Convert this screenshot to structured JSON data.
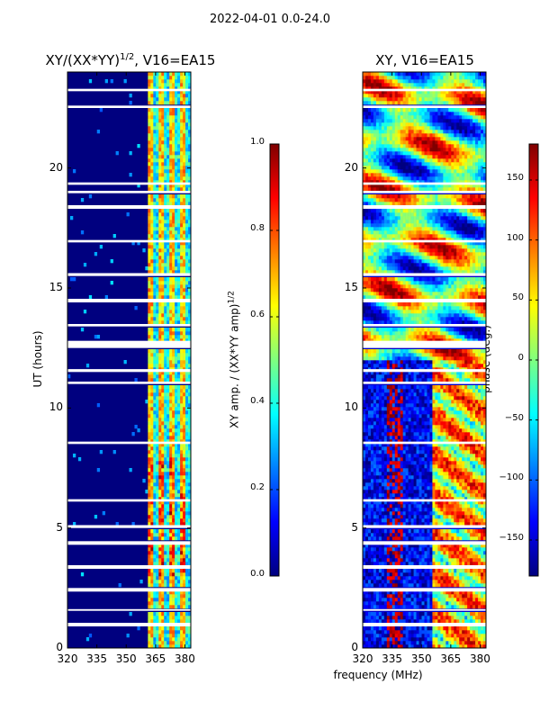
{
  "suptitle": "2022-04-01 0.0-24.0",
  "chart_data": [
    {
      "type": "heatmap",
      "title": "XY/(XX*YY)^1/2, V16=EA15",
      "title_main": "XY/(XX*YY)",
      "title_sup": "1/2",
      "title_rest": ", V16=EA15",
      "xlabel": "",
      "ylabel": "UT (hours)",
      "xlim": [
        320,
        383
      ],
      "ylim": [
        0,
        24
      ],
      "xticks": [
        320,
        335,
        350,
        365,
        380
      ],
      "yticks": [
        0,
        5,
        10,
        15,
        20
      ],
      "xtick_labels": [
        "320",
        "335",
        "350",
        "365",
        "380"
      ],
      "ytick_labels": [
        "0",
        "5",
        "10",
        "15",
        "20"
      ],
      "colorbar": {
        "label": "XY amp. / (XX*YY amp)^1/2",
        "label_main": "XY amp. / (XX*YY amp)",
        "label_sup": "1/2",
        "range": [
          0.0,
          1.0
        ],
        "ticks": [
          0.0,
          0.2,
          0.4,
          0.6,
          0.8,
          1.0
        ],
        "tick_labels": [
          "0.0",
          "0.2",
          "0.4",
          "0.6",
          "0.8",
          "1.0"
        ],
        "colormap": "jet"
      }
    },
    {
      "type": "heatmap",
      "title": "XY, V16=EA15",
      "xlabel": "frequency (MHz)",
      "ylabel": "",
      "xlim": [
        320,
        383
      ],
      "ylim": [
        0,
        24
      ],
      "xticks": [
        320,
        335,
        350,
        365,
        380
      ],
      "yticks": [
        0,
        5,
        10,
        15,
        20
      ],
      "xtick_labels": [
        "320",
        "335",
        "350",
        "365",
        "380"
      ],
      "ytick_labels": [
        "0",
        "5",
        "10",
        "15",
        "20"
      ],
      "colorbar": {
        "label": "phase (deg.)",
        "range": [
          -180,
          180
        ],
        "ticks": [
          -150,
          -100,
          -50,
          0,
          50,
          100,
          150
        ],
        "tick_labels": [
          "−150",
          "−100",
          "−50",
          "0",
          "50",
          "100",
          "150"
        ],
        "colormap": "jet"
      }
    }
  ],
  "flagged_time_ranges_hours": [
    [
      0.9,
      1.05
    ],
    [
      1.55,
      1.62
    ],
    [
      2.35,
      2.5
    ],
    [
      3.3,
      3.45
    ],
    [
      4.3,
      4.45
    ],
    [
      5.0,
      5.12
    ],
    [
      6.1,
      6.2
    ],
    [
      8.5,
      8.6
    ],
    [
      11.0,
      11.1
    ],
    [
      11.5,
      11.62
    ],
    [
      12.5,
      12.8
    ],
    [
      13.4,
      13.5
    ],
    [
      14.4,
      14.55
    ],
    [
      15.5,
      15.62
    ],
    [
      16.9,
      17.0
    ],
    [
      18.3,
      18.45
    ],
    [
      18.95,
      19.05
    ],
    [
      19.3,
      19.4
    ],
    [
      22.5,
      22.6
    ],
    [
      23.2,
      23.3
    ]
  ]
}
